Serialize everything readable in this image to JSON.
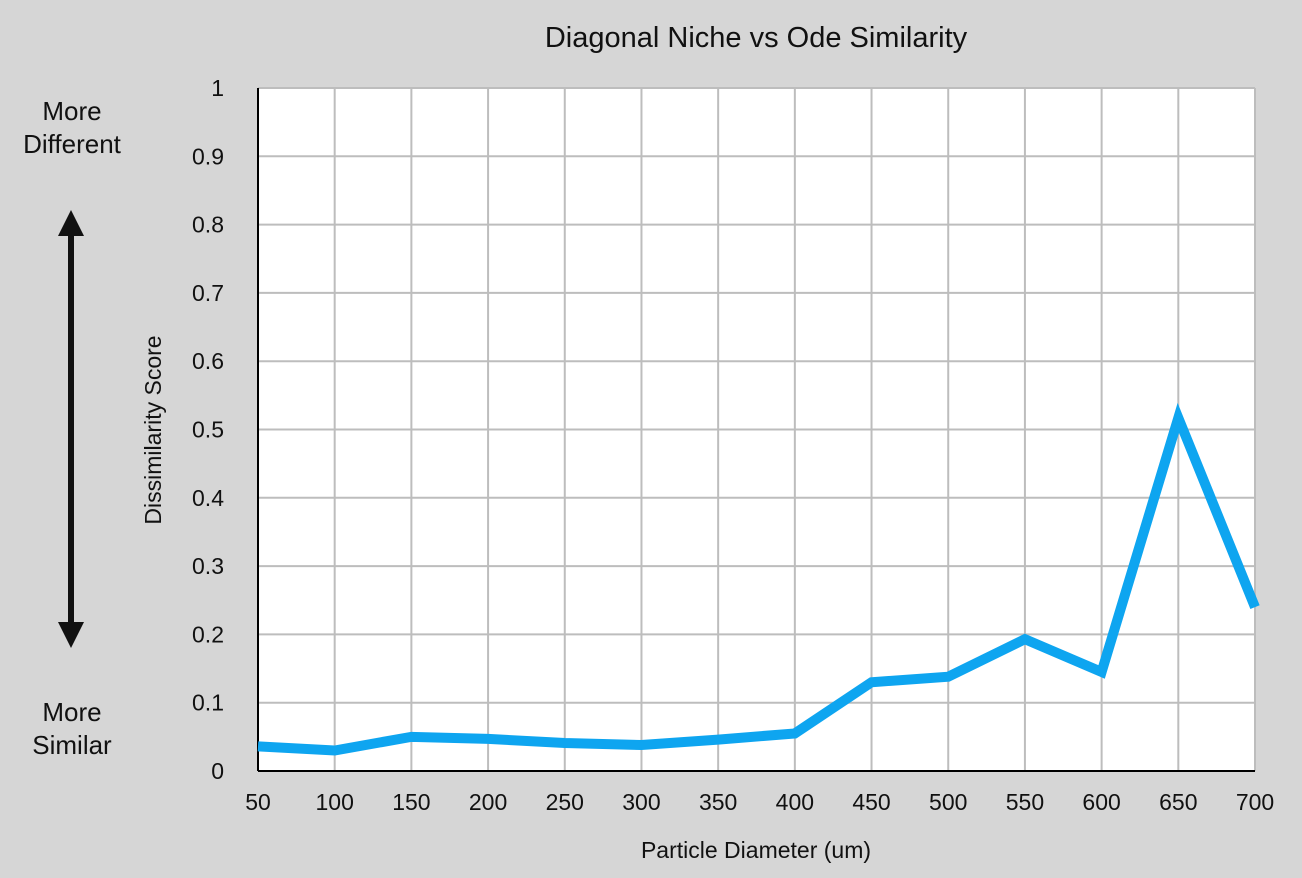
{
  "side_annotation": {
    "top": [
      "More",
      "Different"
    ],
    "bottom": [
      "More",
      "Similar"
    ],
    "arrow_icon": "double-headed-vertical-arrow",
    "arrow_color": "#111111"
  },
  "chart_data": {
    "type": "line",
    "title": "Diagonal Niche vs Ode Similarity",
    "xlabel": "Particle Diameter (um)",
    "ylabel": "Dissimilarity Score",
    "x": [
      50,
      100,
      150,
      200,
      250,
      300,
      350,
      400,
      450,
      500,
      550,
      600,
      650,
      700
    ],
    "x_tick_labels": [
      "50",
      "100",
      "150",
      "200",
      "250",
      "300",
      "350",
      "400",
      "450",
      "500",
      "550",
      "600",
      "650",
      "700"
    ],
    "y_tick_labels": [
      "0",
      "0.1",
      "0.2",
      "0.3",
      "0.4",
      "0.5",
      "0.6",
      "0.7",
      "0.8",
      "0.9",
      "1"
    ],
    "xlim": [
      50,
      700
    ],
    "ylim": [
      0,
      1
    ],
    "grid": true,
    "legend": false,
    "series": [
      {
        "values": [
          0.036,
          0.03,
          0.05,
          0.047,
          0.041,
          0.038,
          0.046,
          0.055,
          0.13,
          0.138,
          0.193,
          0.145,
          0.517,
          0.24
        ],
        "color": "#0ea5f0"
      }
    ],
    "colors": {
      "background": "#d6d6d6",
      "plot_background": "#ffffff",
      "grid": "#bdbdbd",
      "axis": "#000000"
    }
  }
}
